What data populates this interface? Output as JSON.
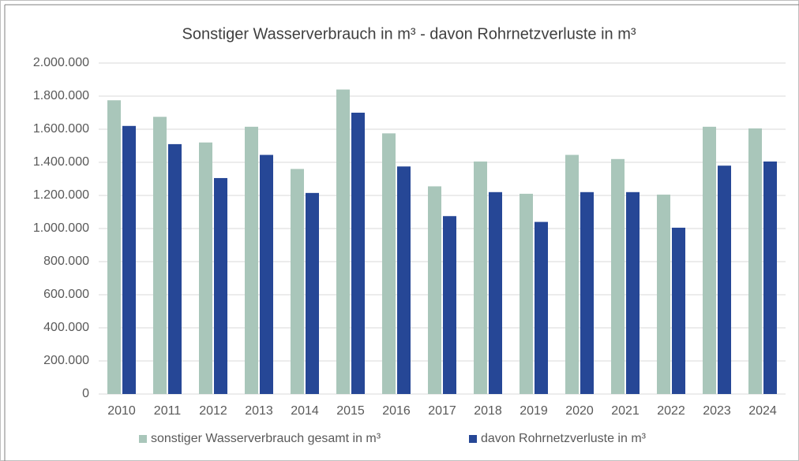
{
  "chart_data": {
    "type": "bar",
    "title": "Sonstiger Wasserverbrauch in m³ - davon Rohrnetzverluste in m³",
    "categories": [
      "2010",
      "2011",
      "2012",
      "2013",
      "2014",
      "2015",
      "2016",
      "2017",
      "2018",
      "2019",
      "2020",
      "2021",
      "2022",
      "2023",
      "2024"
    ],
    "series": [
      {
        "name": "sonstiger Wasserverbrauch gesamt in m³",
        "color": "#a9c6ba",
        "values": [
          1775000,
          1675000,
          1520000,
          1615000,
          1360000,
          1840000,
          1575000,
          1255000,
          1405000,
          1210000,
          1445000,
          1420000,
          1205000,
          1615000,
          1605000
        ]
      },
      {
        "name": "davon Rohrnetzverluste in m³",
        "color": "#264796",
        "values": [
          1620000,
          1510000,
          1305000,
          1445000,
          1215000,
          1700000,
          1375000,
          1075000,
          1220000,
          1040000,
          1220000,
          1220000,
          1005000,
          1380000,
          1405000
        ]
      }
    ],
    "ylim": [
      0,
      2000000
    ],
    "yticks": [
      0,
      {
        "value": 200000,
        "label": "200.000"
      },
      {
        "value": 400000,
        "label": "400.000"
      },
      {
        "value": 600000,
        "label": "600.000"
      },
      {
        "value": 800000,
        "label": "800.000"
      },
      {
        "value": 1000000,
        "label": "1.000.000"
      },
      {
        "value": 1200000,
        "label": "1.200.000"
      },
      {
        "value": 1400000,
        "label": "1.400.000"
      },
      {
        "value": 1600000,
        "label": "1.600.000"
      },
      {
        "value": 1800000,
        "label": "1.800.000"
      },
      {
        "value": 2000000,
        "label": "2.000.000"
      }
    ],
    "grid": true,
    "legend": "bottom"
  }
}
